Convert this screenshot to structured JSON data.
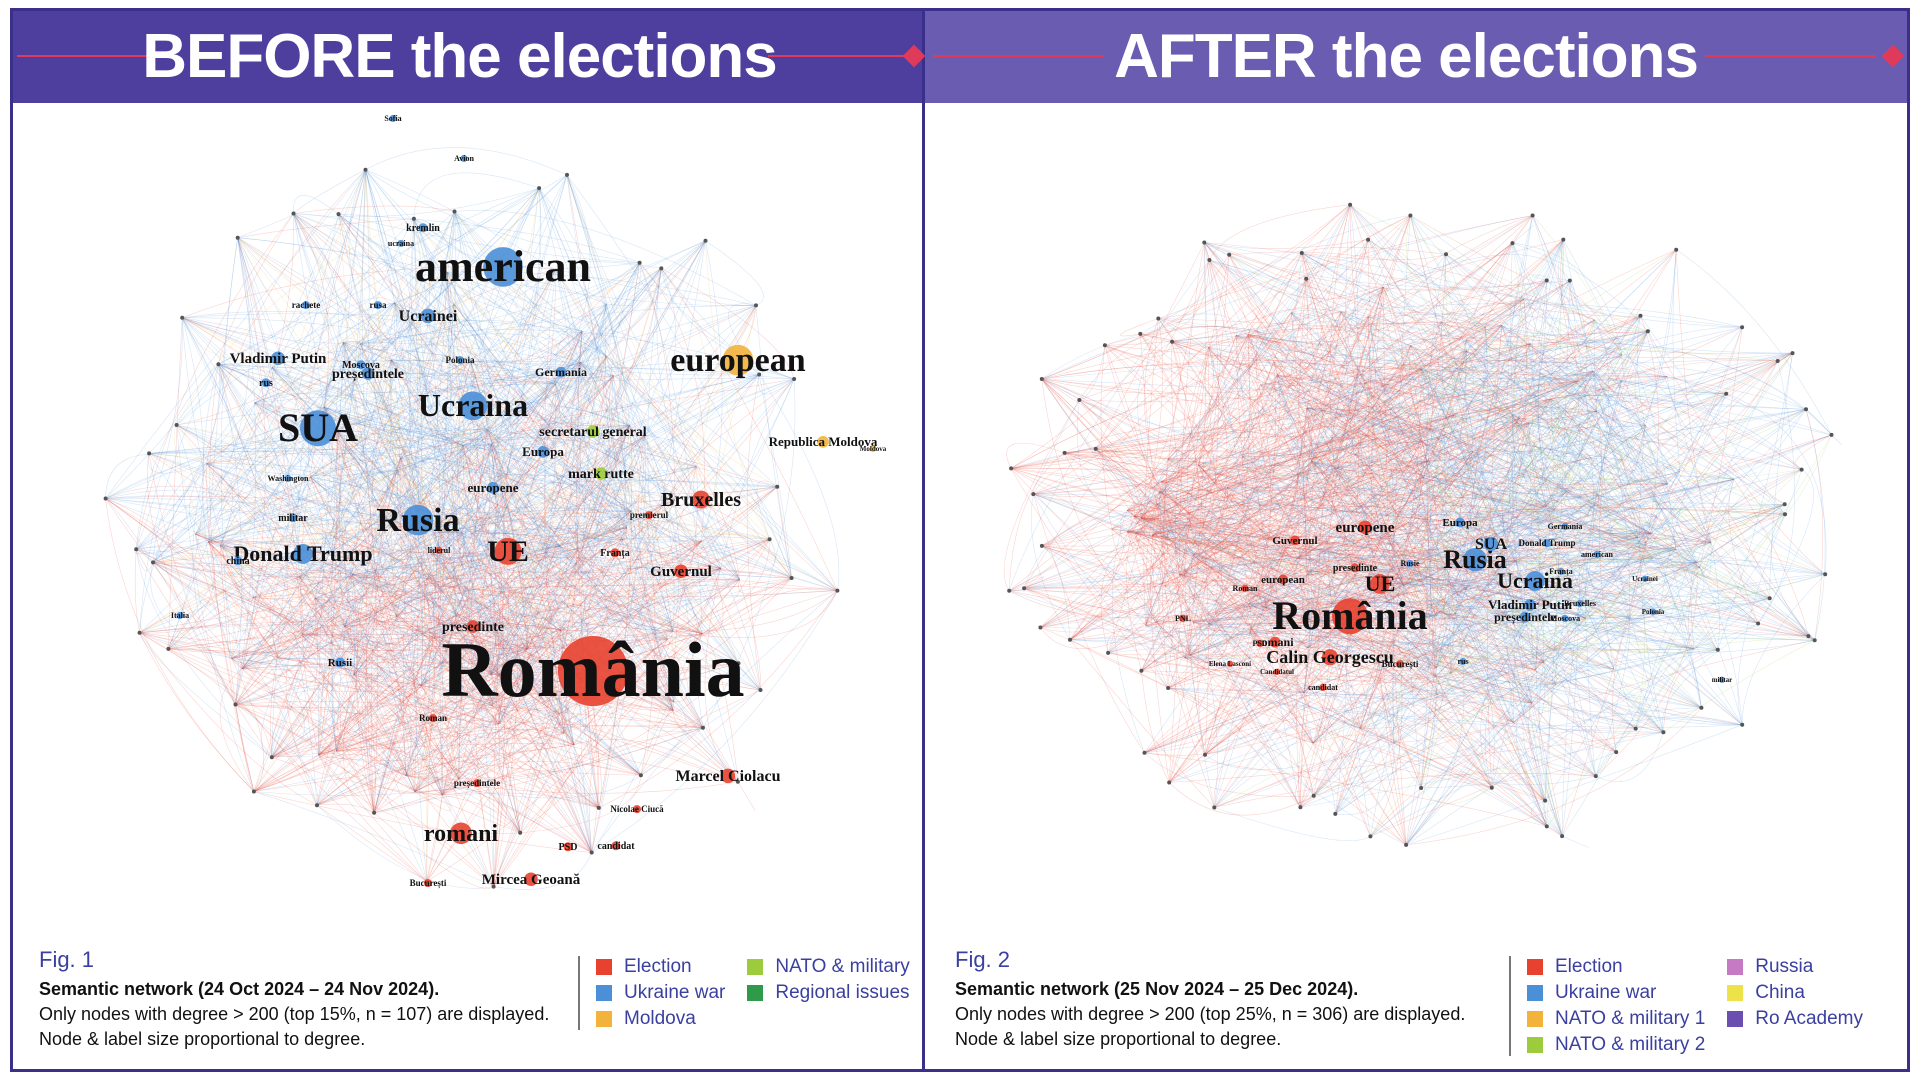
{
  "left_panel": {
    "banner_title": "BEFORE the elections",
    "figure_label": "Fig. 1",
    "caption_title": "Semantic network (24 Oct 2024 – 24 Nov 2024).",
    "caption_line2": "Only nodes with degree > 200 (top 15%, n = 107) are displayed.",
    "caption_line3": "Node & label size proportional to degree.",
    "legend": [
      {
        "label": "Election",
        "color": "#e8412f"
      },
      {
        "label": "NATO & military",
        "color": "#9ccc3c"
      },
      {
        "label": "Ukraine war",
        "color": "#4a8fd8"
      },
      {
        "label": "Regional issues",
        "color": "#2f9a4a"
      },
      {
        "label": "Moldova",
        "color": "#f2b23c"
      }
    ],
    "nodes": [
      {
        "label": "România",
        "color": "#e8412f"
      },
      {
        "label": "american",
        "color": "#4a8fd8"
      },
      {
        "label": "european",
        "color": "#f2b23c"
      },
      {
        "label": "SUA",
        "color": "#4a8fd8"
      },
      {
        "label": "Ucraina",
        "color": "#4a8fd8"
      },
      {
        "label": "Rusia",
        "color": "#4a8fd8"
      },
      {
        "label": "UE",
        "color": "#e8412f"
      },
      {
        "label": "Donald Trump",
        "color": "#4a8fd8"
      },
      {
        "label": "romani",
        "color": "#e8412f"
      },
      {
        "label": "Bruxelles",
        "color": "#e8412f"
      },
      {
        "label": "Marcel Ciolacu",
        "color": "#e8412f"
      },
      {
        "label": "Mircea Geoană",
        "color": "#e8412f"
      },
      {
        "label": "Republica Moldova",
        "color": "#f2b23c"
      },
      {
        "label": "Guvernul",
        "color": "#e8412f"
      },
      {
        "label": "Ucrainei",
        "color": "#4a8fd8"
      },
      {
        "label": "Vladimir Putin",
        "color": "#4a8fd8"
      },
      {
        "label": "președintele",
        "color": "#4a8fd8"
      },
      {
        "label": "secretarul general",
        "color": "#9ccc3c"
      },
      {
        "label": "mark rutte",
        "color": "#9ccc3c"
      },
      {
        "label": "Europa",
        "color": "#4a8fd8"
      },
      {
        "label": "europene",
        "color": "#4a8fd8"
      },
      {
        "label": "presedinte",
        "color": "#e8412f"
      },
      {
        "label": "Germania",
        "color": "#4a8fd8"
      },
      {
        "label": "Moscova",
        "color": "#4a8fd8"
      },
      {
        "label": "rus",
        "color": "#4a8fd8"
      },
      {
        "label": "kremlin",
        "color": "#4a8fd8"
      },
      {
        "label": "rachete",
        "color": "#4a8fd8"
      },
      {
        "label": "rusa",
        "color": "#4a8fd8"
      },
      {
        "label": "Polonia",
        "color": "#4a8fd8"
      },
      {
        "label": "militar",
        "color": "#4a8fd8"
      },
      {
        "label": "china",
        "color": "#4a8fd8"
      },
      {
        "label": "Franța",
        "color": "#e8412f"
      },
      {
        "label": "premierul",
        "color": "#e8412f"
      },
      {
        "label": "liderul",
        "color": "#e8412f"
      },
      {
        "label": "Rusii",
        "color": "#4a8fd8"
      },
      {
        "label": "Roman",
        "color": "#e8412f"
      },
      {
        "label": "președintele",
        "color": "#e8412f"
      },
      {
        "label": "Nicolae Ciucă",
        "color": "#e8412f"
      },
      {
        "label": "PSD",
        "color": "#e8412f"
      },
      {
        "label": "candidat",
        "color": "#e8412f"
      },
      {
        "label": "București",
        "color": "#e8412f"
      },
      {
        "label": "Washington",
        "color": "#4a8fd8"
      },
      {
        "label": "Italia",
        "color": "#4a8fd8"
      },
      {
        "label": "Moldova",
        "color": "#f2b23c"
      },
      {
        "label": "Sofia",
        "color": "#4a8fd8"
      },
      {
        "label": "Avion",
        "color": "#4a8fd8"
      },
      {
        "label": "ucraina",
        "color": "#4a8fd8"
      }
    ]
  },
  "right_panel": {
    "banner_title": "AFTER the elections",
    "figure_label": "Fig. 2",
    "caption_title": "Semantic network (25 Nov 2024 – 25 Dec 2024).",
    "caption_line2": "Only nodes with degree > 200 (top 25%, n = 306) are displayed.",
    "caption_line3": "Node & label size proportional to degree.",
    "legend": [
      {
        "label": "Election",
        "color": "#e8412f"
      },
      {
        "label": "Russia",
        "color": "#c77ac4"
      },
      {
        "label": "Ukraine war",
        "color": "#4a8fd8"
      },
      {
        "label": "China",
        "color": "#eee24a"
      },
      {
        "label": "NATO & military 1",
        "color": "#f2b23c"
      },
      {
        "label": "Ro Academy",
        "color": "#6a4fb0"
      },
      {
        "label": "NATO & military 2",
        "color": "#9ccc3c"
      }
    ],
    "nodes": [
      {
        "label": "România",
        "color": "#e8412f"
      },
      {
        "label": "Rusia",
        "color": "#4a8fd8"
      },
      {
        "label": "Ucraina",
        "color": "#4a8fd8"
      },
      {
        "label": "Calin Georgescu",
        "color": "#e8412f"
      },
      {
        "label": "UE",
        "color": "#e8412f"
      },
      {
        "label": "europene",
        "color": "#e8412f"
      },
      {
        "label": "SUA",
        "color": "#4a8fd8"
      },
      {
        "label": "Vladimir Putin",
        "color": "#4a8fd8"
      },
      {
        "label": "președintele",
        "color": "#4a8fd8"
      },
      {
        "label": "romani",
        "color": "#e8412f"
      },
      {
        "label": "european",
        "color": "#e8412f"
      },
      {
        "label": "presedinte",
        "color": "#e8412f"
      },
      {
        "label": "Europa",
        "color": "#4a8fd8"
      },
      {
        "label": "Guvernul",
        "color": "#e8412f"
      },
      {
        "label": "Donald Trump",
        "color": "#4a8fd8"
      },
      {
        "label": "București",
        "color": "#e8412f"
      },
      {
        "label": "PSD",
        "color": "#e8412f"
      },
      {
        "label": "candidat",
        "color": "#e8412f"
      },
      {
        "label": "Germania",
        "color": "#4a8fd8"
      },
      {
        "label": "american",
        "color": "#4a8fd8"
      },
      {
        "label": "Bruxelles",
        "color": "#4a8fd8"
      },
      {
        "label": "Franța",
        "color": "#4a8fd8"
      },
      {
        "label": "Moscova",
        "color": "#4a8fd8"
      },
      {
        "label": "PNL",
        "color": "#e8412f"
      },
      {
        "label": "Roman",
        "color": "#e8412f"
      },
      {
        "label": "rus",
        "color": "#4a8fd8"
      },
      {
        "label": "Polonia",
        "color": "#4a8fd8"
      },
      {
        "label": "Elena Lasconi",
        "color": "#e8412f"
      },
      {
        "label": "Candidatul",
        "color": "#e8412f"
      },
      {
        "label": "Rusie",
        "color": "#4a8fd8"
      },
      {
        "label": "militar",
        "color": "#4a8fd8"
      },
      {
        "label": "Ucrainei",
        "color": "#4a8fd8"
      }
    ]
  }
}
